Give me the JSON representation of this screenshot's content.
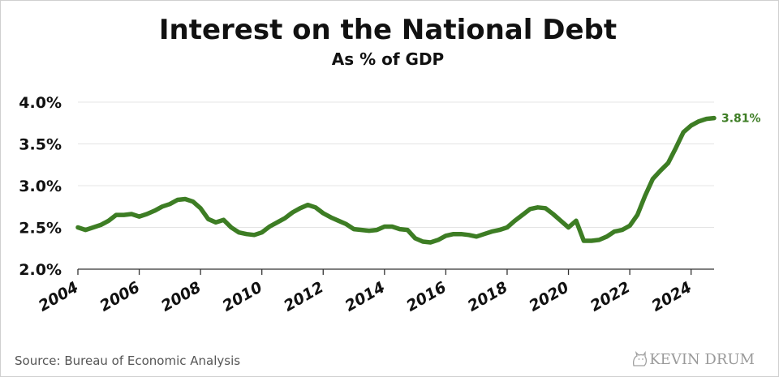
{
  "colors": {
    "line": "#3d7d24",
    "text": "#111111",
    "grid": "#e4e4e4"
  },
  "footer": {
    "source": "Source: Bureau of Economic Analysis",
    "brand": "KEVIN DRUM"
  },
  "chart_data": {
    "type": "line",
    "title": "Interest on the National Debt",
    "subtitle": "As % of GDP",
    "xlabel": "",
    "ylabel": "",
    "ylim": [
      2.0,
      4.0
    ],
    "xlim": [
      2004.0,
      2024.75
    ],
    "yticks": [
      2.0,
      2.5,
      3.0,
      3.5,
      4.0
    ],
    "ytick_labels": [
      "2.0%",
      "2.5%",
      "3.0%",
      "3.5%",
      "4.0%"
    ],
    "xticks": [
      2004,
      2006,
      2008,
      2010,
      2012,
      2014,
      2016,
      2018,
      2020,
      2022,
      2024
    ],
    "xtick_labels": [
      "2004",
      "2006",
      "2008",
      "2010",
      "2012",
      "2014",
      "2016",
      "2018",
      "2020",
      "2022",
      "2024"
    ],
    "grid": true,
    "end_label": "3.81%",
    "series": [
      {
        "color": "#3d7d24",
        "x": [
          2004.0,
          2004.25,
          2004.5,
          2004.75,
          2005.0,
          2005.25,
          2005.5,
          2005.75,
          2006.0,
          2006.25,
          2006.5,
          2006.75,
          2007.0,
          2007.25,
          2007.5,
          2007.75,
          2008.0,
          2008.25,
          2008.5,
          2008.75,
          2009.0,
          2009.25,
          2009.5,
          2009.75,
          2010.0,
          2010.25,
          2010.5,
          2010.75,
          2011.0,
          2011.25,
          2011.5,
          2011.75,
          2012.0,
          2012.25,
          2012.5,
          2012.75,
          2013.0,
          2013.25,
          2013.5,
          2013.75,
          2014.0,
          2014.25,
          2014.5,
          2014.75,
          2015.0,
          2015.25,
          2015.5,
          2015.75,
          2016.0,
          2016.25,
          2016.5,
          2016.75,
          2017.0,
          2017.25,
          2017.5,
          2017.75,
          2018.0,
          2018.25,
          2018.5,
          2018.75,
          2019.0,
          2019.25,
          2019.5,
          2019.75,
          2020.0,
          2020.25,
          2020.5,
          2020.75,
          2021.0,
          2021.25,
          2021.5,
          2021.75,
          2022.0,
          2022.25,
          2022.5,
          2022.75,
          2023.0,
          2023.25,
          2023.5,
          2023.75,
          2024.0,
          2024.25,
          2024.5,
          2024.75
        ],
        "values": [
          2.5,
          2.47,
          2.5,
          2.53,
          2.58,
          2.65,
          2.65,
          2.66,
          2.63,
          2.66,
          2.7,
          2.75,
          2.78,
          2.83,
          2.84,
          2.81,
          2.73,
          2.6,
          2.56,
          2.59,
          2.5,
          2.44,
          2.42,
          2.41,
          2.44,
          2.51,
          2.56,
          2.61,
          2.68,
          2.73,
          2.77,
          2.74,
          2.67,
          2.62,
          2.58,
          2.54,
          2.48,
          2.47,
          2.46,
          2.47,
          2.51,
          2.51,
          2.48,
          2.47,
          2.37,
          2.33,
          2.32,
          2.35,
          2.4,
          2.42,
          2.42,
          2.41,
          2.39,
          2.42,
          2.45,
          2.47,
          2.5,
          2.58,
          2.65,
          2.72,
          2.74,
          2.73,
          2.66,
          2.58,
          2.5,
          2.58,
          2.34,
          2.34,
          2.35,
          2.39,
          2.45,
          2.47,
          2.52,
          2.65,
          2.88,
          3.08,
          3.18,
          3.27,
          3.45,
          3.64,
          3.72,
          3.77,
          3.8,
          3.81
        ]
      }
    ]
  }
}
